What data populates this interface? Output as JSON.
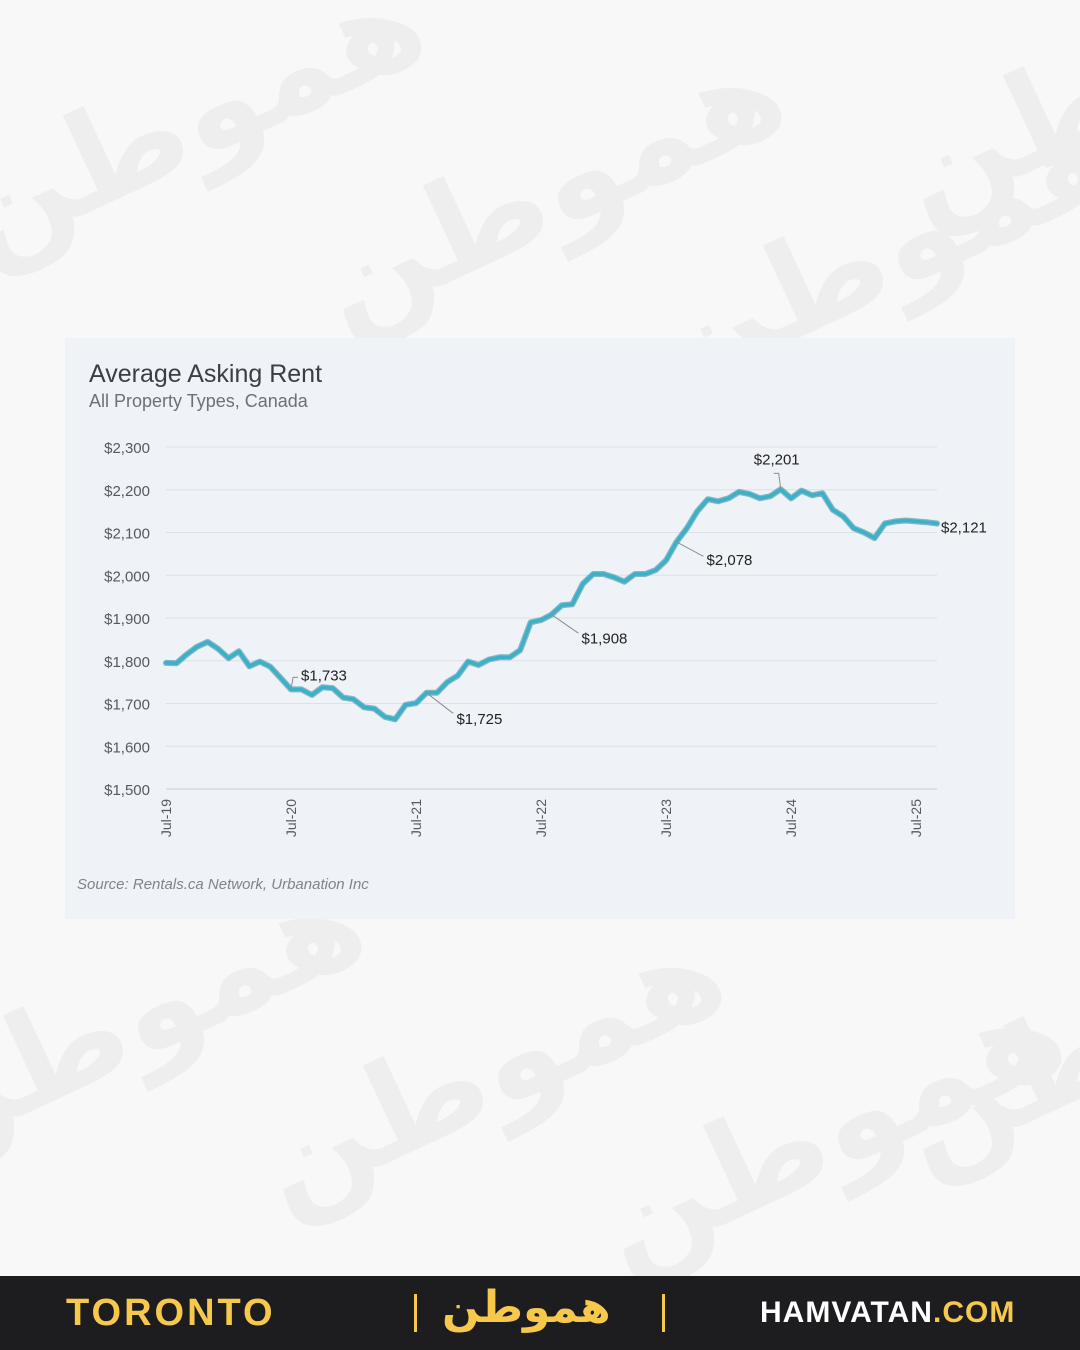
{
  "watermark": {
    "text": "همو‌طن"
  },
  "chart_data": {
    "type": "line",
    "title": "Average Asking Rent",
    "subtitle": "All Property Types, Canada",
    "source": "Source: Rentals.ca Network, Urbanation Inc",
    "ylim": [
      1500,
      2300
    ],
    "yticks": [
      1500,
      1600,
      1700,
      1800,
      1900,
      2000,
      2100,
      2200,
      2300
    ],
    "ytick_labels": [
      "$1,500",
      "$1,600",
      "$1,700",
      "$1,800",
      "$1,900",
      "$2,000",
      "$2,100",
      "$2,200",
      "$2,300"
    ],
    "xtick_labels": [
      "Jul-19",
      "Jul-20",
      "Jul-21",
      "Jul-22",
      "Jul-23",
      "Jul-24",
      "Jul-25"
    ],
    "grid": true,
    "line_color": "#3ab0c9",
    "series": [
      {
        "values": [
          1795,
          1794,
          1815,
          1833,
          1844,
          1828,
          1806,
          1822,
          1787,
          1798,
          1786,
          1760,
          1733,
          1733,
          1720,
          1738,
          1736,
          1714,
          1710,
          1691,
          1688,
          1669,
          1663,
          1697,
          1701,
          1725,
          1725,
          1750,
          1765,
          1798,
          1790,
          1803,
          1808,
          1808,
          1825,
          1890,
          1895,
          1908,
          1930,
          1932,
          1980,
          2003,
          2003,
          1995,
          1985,
          2003,
          2003,
          2012,
          2035,
          2078,
          2110,
          2150,
          2178,
          2173,
          2180,
          2195,
          2190,
          2180,
          2185,
          2201,
          2180,
          2198,
          2187,
          2192,
          2153,
          2138,
          2110,
          2100,
          2087,
          2121,
          2126,
          2128,
          2126,
          2124,
          2121
        ]
      }
    ],
    "annotations": [
      {
        "index": 12,
        "label": "$1,733"
      },
      {
        "index": 25,
        "label": "$1,725"
      },
      {
        "index": 37,
        "label": "$1,908"
      },
      {
        "index": 49,
        "label": "$2,078"
      },
      {
        "index": 59,
        "label": "$2,201"
      },
      {
        "index": 74,
        "label": "$2,121"
      }
    ]
  },
  "footer": {
    "city": "TORONTO",
    "logo": "همو‌طن",
    "site_main": "HAMVATAN",
    "site_tld": ".COM"
  }
}
